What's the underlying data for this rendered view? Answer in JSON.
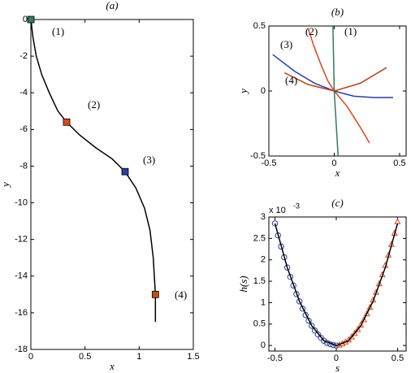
{
  "chart_data": [
    {
      "type": "line",
      "title": "(a)",
      "x_label": "x",
      "y_label": "y",
      "xlim": [
        0,
        1.5
      ],
      "xticks": [
        0,
        0.5,
        1,
        1.5
      ],
      "ylim": [
        -18,
        0
      ],
      "yticks": [
        0,
        -2,
        -4,
        -6,
        -8,
        -10,
        -12,
        -14,
        -16,
        -18
      ],
      "series": [
        {
          "color": "#000000",
          "marker": "none",
          "x": [
            0,
            0.02,
            0.05,
            0.1,
            0.17,
            0.25,
            0.33,
            0.45,
            0.6,
            0.75,
            0.87,
            0.97,
            1.05,
            1.1,
            1.13,
            1.15,
            1.15
          ],
          "values": [
            0,
            -1,
            -2,
            -3,
            -4,
            -5,
            -5.6,
            -6.3,
            -7,
            -7.6,
            -8.3,
            -9.2,
            -10.3,
            -11.5,
            -13,
            -15,
            -16.5
          ]
        },
        {
          "marker": "square",
          "colors": [
            "#2e7d5b",
            "#d9481c",
            "#2b3f9c",
            "#c0501c"
          ],
          "x": [
            0,
            0.33,
            0.87,
            1.15
          ],
          "values": [
            0,
            -5.6,
            -8.3,
            -15
          ]
        }
      ],
      "annotations": [
        {
          "text": "(1)",
          "color": "#2e7d5b"
        },
        {
          "text": "(2)",
          "color": "#d9481c"
        },
        {
          "text": "(3)",
          "color": "#2b3f9c"
        },
        {
          "text": "(4)",
          "color": "#c0501c"
        }
      ]
    },
    {
      "type": "line",
      "title": "(b)",
      "x_label": "x",
      "y_label": "y",
      "xlim": [
        -0.5,
        0.55
      ],
      "xticks": [
        -0.5,
        0,
        0.5
      ],
      "ylim": [
        -0.5,
        0.5
      ],
      "yticks": [
        -0.5,
        0,
        0.5
      ],
      "series": [
        {
          "color": "#2e7d5b",
          "marker": "none",
          "x": [
            -0.01,
            0,
            0.03
          ],
          "values": [
            0.5,
            0,
            -0.5
          ]
        },
        {
          "color": "#d9481c",
          "marker": "none",
          "x": [
            -0.2,
            -0.15,
            -0.1,
            -0.05,
            0,
            0.1,
            0.2,
            0.27
          ],
          "values": [
            0.48,
            0.33,
            0.2,
            0.08,
            0,
            -0.12,
            -0.28,
            -0.4
          ]
        },
        {
          "color": "#2b3f9c",
          "marker": "none",
          "x": [
            -0.47,
            -0.3,
            -0.15,
            0,
            0.15,
            0.3,
            0.45
          ],
          "values": [
            0.28,
            0.15,
            0.06,
            0,
            -0.04,
            -0.05,
            -0.05
          ]
        },
        {
          "color": "#b5441c",
          "marker": "none",
          "x": [
            -0.38,
            -0.2,
            0,
            0.2,
            0.4
          ],
          "values": [
            0.14,
            0.05,
            0,
            0.06,
            0.18
          ]
        }
      ],
      "annotations": [
        {
          "text": "(1)",
          "color": "#2e7d5b"
        },
        {
          "text": "(2)",
          "color": "#d9481c"
        },
        {
          "text": "(3)",
          "color": "#2b3f9c"
        },
        {
          "text": "(4)",
          "color": "#c0501c"
        }
      ]
    },
    {
      "type": "line",
      "title": "(c)",
      "x_label": "s",
      "y_label": "h(s)",
      "y_scale_label": "x 10",
      "y_scale_exponent": "-3",
      "xlim": [
        -0.55,
        0.57
      ],
      "xticks": [
        -0.5,
        0,
        0.5
      ],
      "ylim": [
        -0.13,
        3.0
      ],
      "yticks": [
        0,
        0.5,
        1,
        1.5,
        2,
        2.5,
        3
      ],
      "series": [
        {
          "color": "#2b3f9c",
          "marker": "circle",
          "line": false,
          "x": [
            -0.5,
            -0.475,
            -0.45,
            -0.425,
            -0.4,
            -0.375,
            -0.35,
            -0.325,
            -0.3,
            -0.275,
            -0.25,
            -0.225,
            -0.2,
            -0.175,
            -0.15,
            -0.125,
            -0.1,
            -0.075,
            -0.05,
            -0.025,
            0
          ],
          "values": [
            2.85,
            2.57,
            2.31,
            2.06,
            1.82,
            1.6,
            1.4,
            1.2,
            1.03,
            0.86,
            0.71,
            0.58,
            0.46,
            0.35,
            0.26,
            0.18,
            0.11,
            0.06,
            0.03,
            0.01,
            0
          ]
        },
        {
          "color": "#d9481c",
          "marker": "triangle",
          "line": false,
          "x": [
            0.025,
            0.05,
            0.075,
            0.1,
            0.125,
            0.15,
            0.175,
            0.2,
            0.225,
            0.25,
            0.275,
            0.3,
            0.325,
            0.35,
            0.375,
            0.4,
            0.425,
            0.45,
            0.475,
            0.5
          ],
          "values": [
            0.01,
            0.04,
            0.08,
            0.13,
            0.2,
            0.28,
            0.37,
            0.48,
            0.6,
            0.74,
            0.89,
            1.06,
            1.24,
            1.44,
            1.65,
            1.87,
            2.11,
            2.36,
            2.62,
            2.89
          ]
        },
        {
          "color": "#000000",
          "marker": "none",
          "x": [
            -0.5,
            -0.4,
            -0.3,
            -0.2,
            -0.1,
            0,
            0.1,
            0.2,
            0.3,
            0.4,
            0.5
          ],
          "values": [
            2.85,
            1.82,
            1.03,
            0.46,
            0.11,
            0,
            0.11,
            0.46,
            1.03,
            1.82,
            2.85
          ]
        }
      ]
    }
  ]
}
